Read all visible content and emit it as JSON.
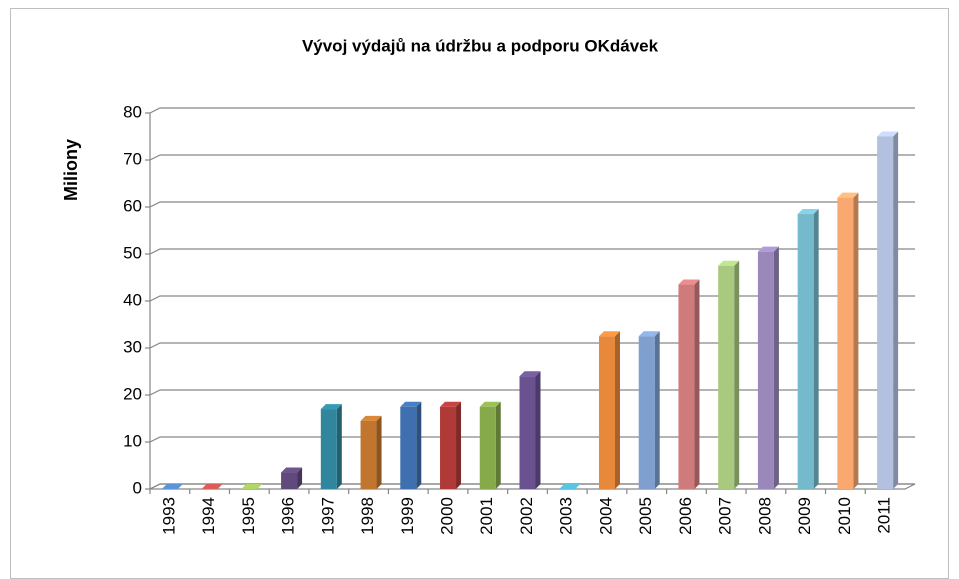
{
  "chart_data": {
    "type": "bar3d",
    "title": "Vývoj výdajů na údržbu a podporu OKdávek",
    "y_label": "Miliony",
    "categories": [
      "1993",
      "1994",
      "1995",
      "1996",
      "1997",
      "1998",
      "1999",
      "2000",
      "2001",
      "2002",
      "2003",
      "2004",
      "2005",
      "2006",
      "2007",
      "2008",
      "2009",
      "2010",
      "2011"
    ],
    "values": [
      0,
      0,
      0,
      3.5,
      17,
      14.5,
      17.5,
      17.5,
      17.5,
      24,
      0,
      32.5,
      32.5,
      43.5,
      47.5,
      50.5,
      58.5,
      62,
      75
    ],
    "colors": [
      "#4f81bd",
      "#c0504d",
      "#9bbb59",
      "#604a7b",
      "#31859c",
      "#c0762f",
      "#3f6fae",
      "#b03a37",
      "#86a94a",
      "#6a5290",
      "#4bacc6",
      "#e8883a",
      "#7f9fcf",
      "#cf7b7b",
      "#a9c97f",
      "#9a88bb",
      "#74b9cc",
      "#f9a86f",
      "#b3c0df"
    ],
    "ylim": [
      0,
      80
    ],
    "yticks": [
      0,
      10,
      20,
      30,
      40,
      50,
      60,
      70,
      80
    ],
    "grid": true
  }
}
